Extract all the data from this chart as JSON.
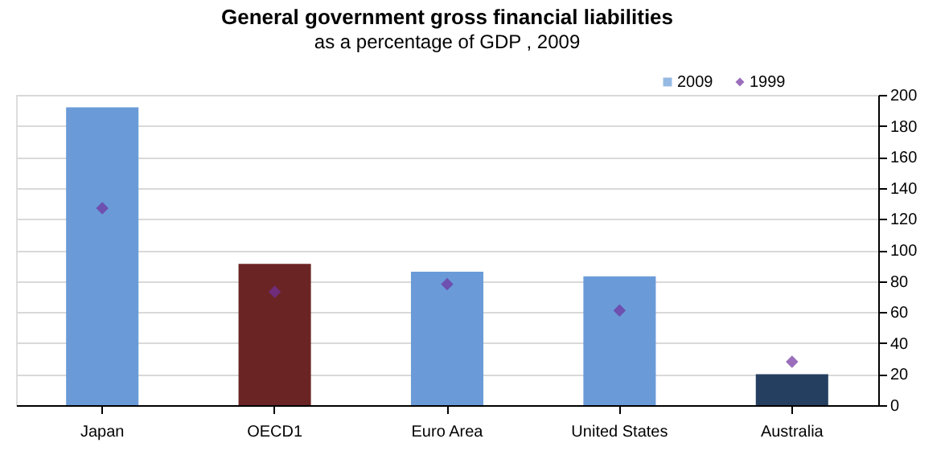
{
  "chart_data": {
    "type": "bar",
    "title": "General government gross financial liabilities",
    "subtitle": "as a percentage of GDP , 2009",
    "categories": [
      "Japan",
      "OECD1",
      "Euro Area",
      "United States",
      "Australia"
    ],
    "series": [
      {
        "name": "2009",
        "type": "bar",
        "color": "#6a9bd8",
        "colors": [
          "#6a9bd8",
          "#6b2424",
          "#6a9bd8",
          "#6a9bd8",
          "#243f60"
        ],
        "values": [
          192,
          91,
          86,
          83,
          20
        ]
      },
      {
        "name": "1999",
        "type": "scatter",
        "color": "#7030a0",
        "marker": "diamond",
        "values": [
          127,
          73,
          78,
          61,
          28
        ]
      }
    ],
    "ylim": [
      0,
      200
    ],
    "yticks": [
      0,
      20,
      40,
      60,
      80,
      100,
      120,
      140,
      160,
      180,
      200
    ],
    "grid": "y",
    "legend": "top right"
  }
}
